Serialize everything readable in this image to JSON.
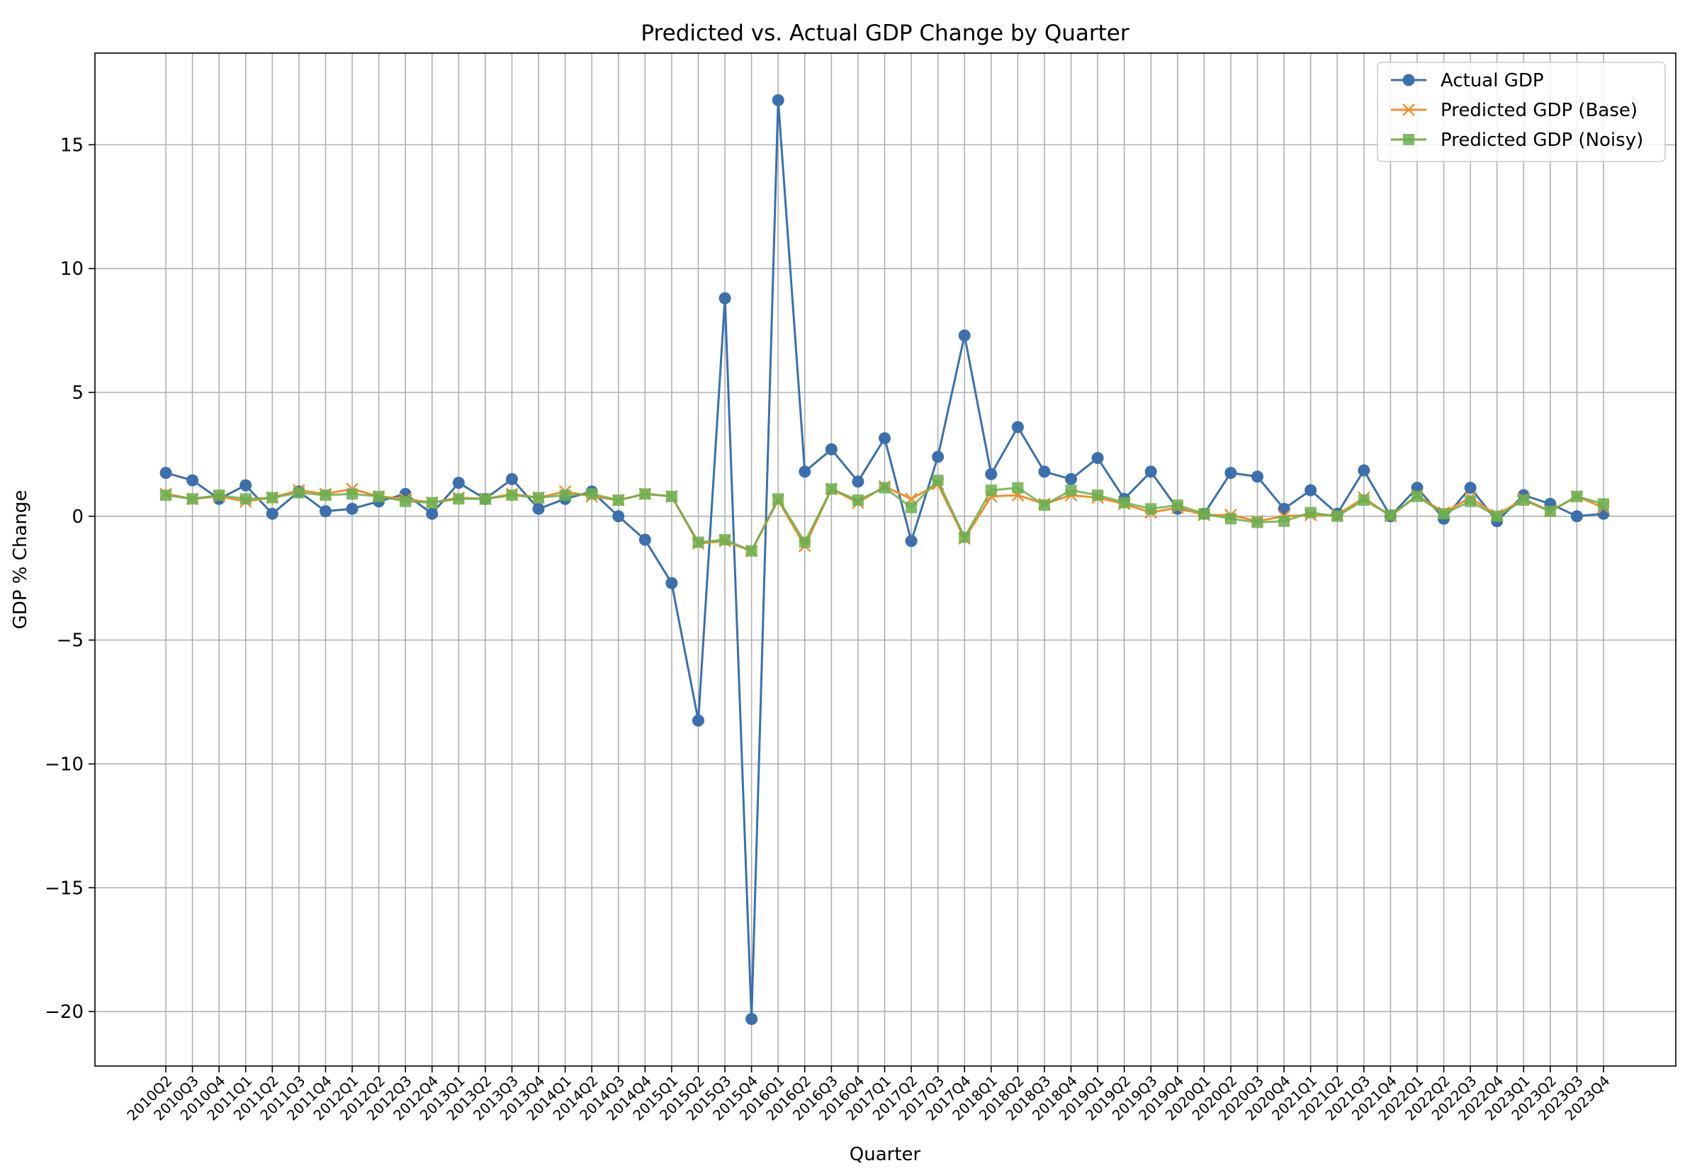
{
  "chart_data": {
    "type": "line",
    "title": "Predicted vs. Actual GDP Change by Quarter",
    "xlabel": "Quarter",
    "ylabel": "GDP % Change",
    "ylim": [
      -22.2,
      18.7
    ],
    "yticks": [
      -20,
      -15,
      -10,
      -5,
      0,
      5,
      10,
      15
    ],
    "grid": true,
    "legend_position": "top-right",
    "categories": [
      "2010Q2",
      "2010Q3",
      "2010Q4",
      "2011Q1",
      "2011Q2",
      "2011Q3",
      "2011Q4",
      "2012Q1",
      "2012Q2",
      "2012Q3",
      "2012Q4",
      "2013Q1",
      "2013Q2",
      "2013Q3",
      "2013Q4",
      "2014Q1",
      "2014Q2",
      "2014Q3",
      "2014Q4",
      "2015Q1",
      "2015Q2",
      "2015Q3",
      "2015Q4",
      "2016Q1",
      "2016Q2",
      "2016Q3",
      "2016Q4",
      "2017Q1",
      "2017Q2",
      "2017Q3",
      "2017Q4",
      "2018Q1",
      "2018Q2",
      "2018Q3",
      "2018Q4",
      "2019Q1",
      "2019Q2",
      "2019Q3",
      "2019Q4",
      "2020Q1",
      "2020Q2",
      "2020Q3",
      "2020Q4",
      "2021Q1",
      "2021Q2",
      "2021Q3",
      "2021Q4",
      "2022Q1",
      "2022Q2",
      "2022Q3",
      "2022Q4",
      "2023Q1",
      "2023Q2",
      "2023Q3",
      "2023Q4"
    ],
    "series": [
      {
        "name": "Actual GDP",
        "color": "#3a70ad",
        "marker": "circle",
        "values": [
          1.75,
          1.45,
          0.7,
          1.25,
          0.1,
          1.0,
          0.2,
          0.3,
          0.6,
          0.9,
          0.1,
          1.35,
          0.7,
          1.5,
          0.3,
          0.7,
          1.0,
          0.0,
          -0.95,
          -2.7,
          -8.25,
          8.8,
          -20.3,
          16.8,
          1.8,
          2.7,
          1.4,
          3.15,
          -1.0,
          2.4,
          7.3,
          1.7,
          3.6,
          1.8,
          1.5,
          2.35,
          0.7,
          1.8,
          0.3,
          0.1,
          1.75,
          1.6,
          0.3,
          1.05,
          0.1,
          1.85,
          0.0,
          1.15,
          -0.1,
          1.15,
          -0.2,
          0.85,
          0.5,
          0.0,
          0.1
        ]
      },
      {
        "name": "Predicted GDP (Base)",
        "color": "#f28e2b",
        "marker": "x",
        "values": [
          0.9,
          0.7,
          0.8,
          0.6,
          0.75,
          1.05,
          0.9,
          1.1,
          0.8,
          0.7,
          0.55,
          0.75,
          0.7,
          0.9,
          0.75,
          1.0,
          0.8,
          0.65,
          0.9,
          0.8,
          -1.1,
          -1.0,
          -1.4,
          0.65,
          -1.2,
          1.1,
          0.55,
          1.2,
          0.7,
          1.3,
          -0.9,
          0.8,
          0.85,
          0.5,
          0.85,
          0.75,
          0.5,
          0.15,
          0.35,
          0.05,
          0.05,
          -0.2,
          0.0,
          0.05,
          0.05,
          0.75,
          0.0,
          0.85,
          0.15,
          0.75,
          0.05,
          0.7,
          0.2,
          0.8,
          0.35
        ]
      },
      {
        "name": "Predicted GDP (Noisy)",
        "color": "#6ab04c",
        "marker": "square",
        "values": [
          0.85,
          0.7,
          0.85,
          0.7,
          0.75,
          0.95,
          0.85,
          0.9,
          0.8,
          0.6,
          0.55,
          0.7,
          0.7,
          0.85,
          0.75,
          0.85,
          0.9,
          0.65,
          0.9,
          0.8,
          -1.05,
          -0.95,
          -1.4,
          0.7,
          -1.05,
          1.1,
          0.65,
          1.15,
          0.35,
          1.45,
          -0.85,
          1.05,
          1.15,
          0.45,
          1.05,
          0.85,
          0.55,
          0.3,
          0.45,
          0.1,
          -0.1,
          -0.25,
          -0.2,
          0.15,
          0.0,
          0.65,
          0.05,
          0.8,
          0.1,
          0.6,
          0.0,
          0.65,
          0.2,
          0.8,
          0.5
        ]
      }
    ]
  }
}
